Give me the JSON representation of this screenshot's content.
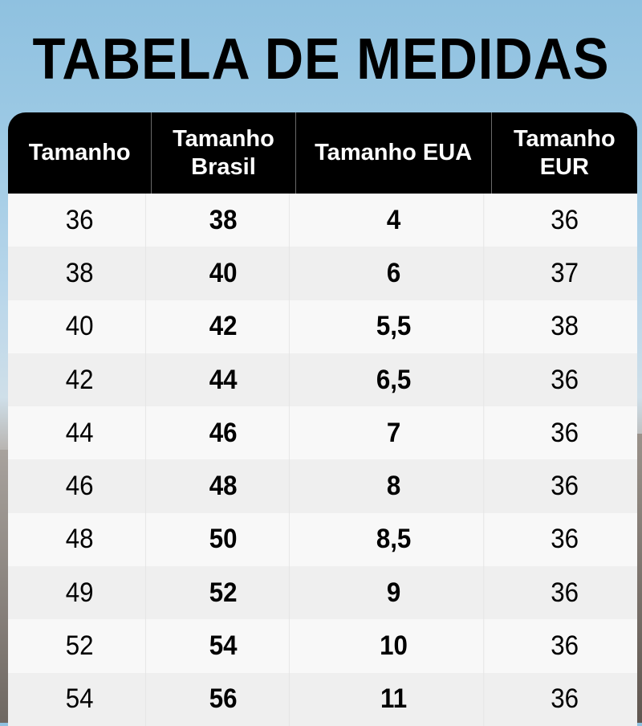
{
  "title": "TABELA DE MEDIDAS",
  "table": {
    "headers": [
      "Tamanho",
      "Tamanho Brasil",
      "Tamanho EUA",
      "Tamanho EUR"
    ],
    "rows": [
      [
        "36",
        "38",
        "4",
        "36"
      ],
      [
        "38",
        "40",
        "6",
        "37"
      ],
      [
        "40",
        "42",
        "5,5",
        "38"
      ],
      [
        "42",
        "44",
        "6,5",
        "36"
      ],
      [
        "44",
        "46",
        "7",
        "36"
      ],
      [
        "46",
        "48",
        "8",
        "36"
      ],
      [
        "48",
        "50",
        "8,5",
        "36"
      ],
      [
        "49",
        "52",
        "9",
        "36"
      ],
      [
        "52",
        "54",
        "10",
        "36"
      ],
      [
        "54",
        "56",
        "11",
        "36"
      ]
    ]
  },
  "colors": {
    "header_bg": "#000000",
    "header_text": "#ffffff",
    "row_light": "#f8f8f8",
    "row_dark": "#efefef",
    "sky": "#9cc9e4"
  }
}
